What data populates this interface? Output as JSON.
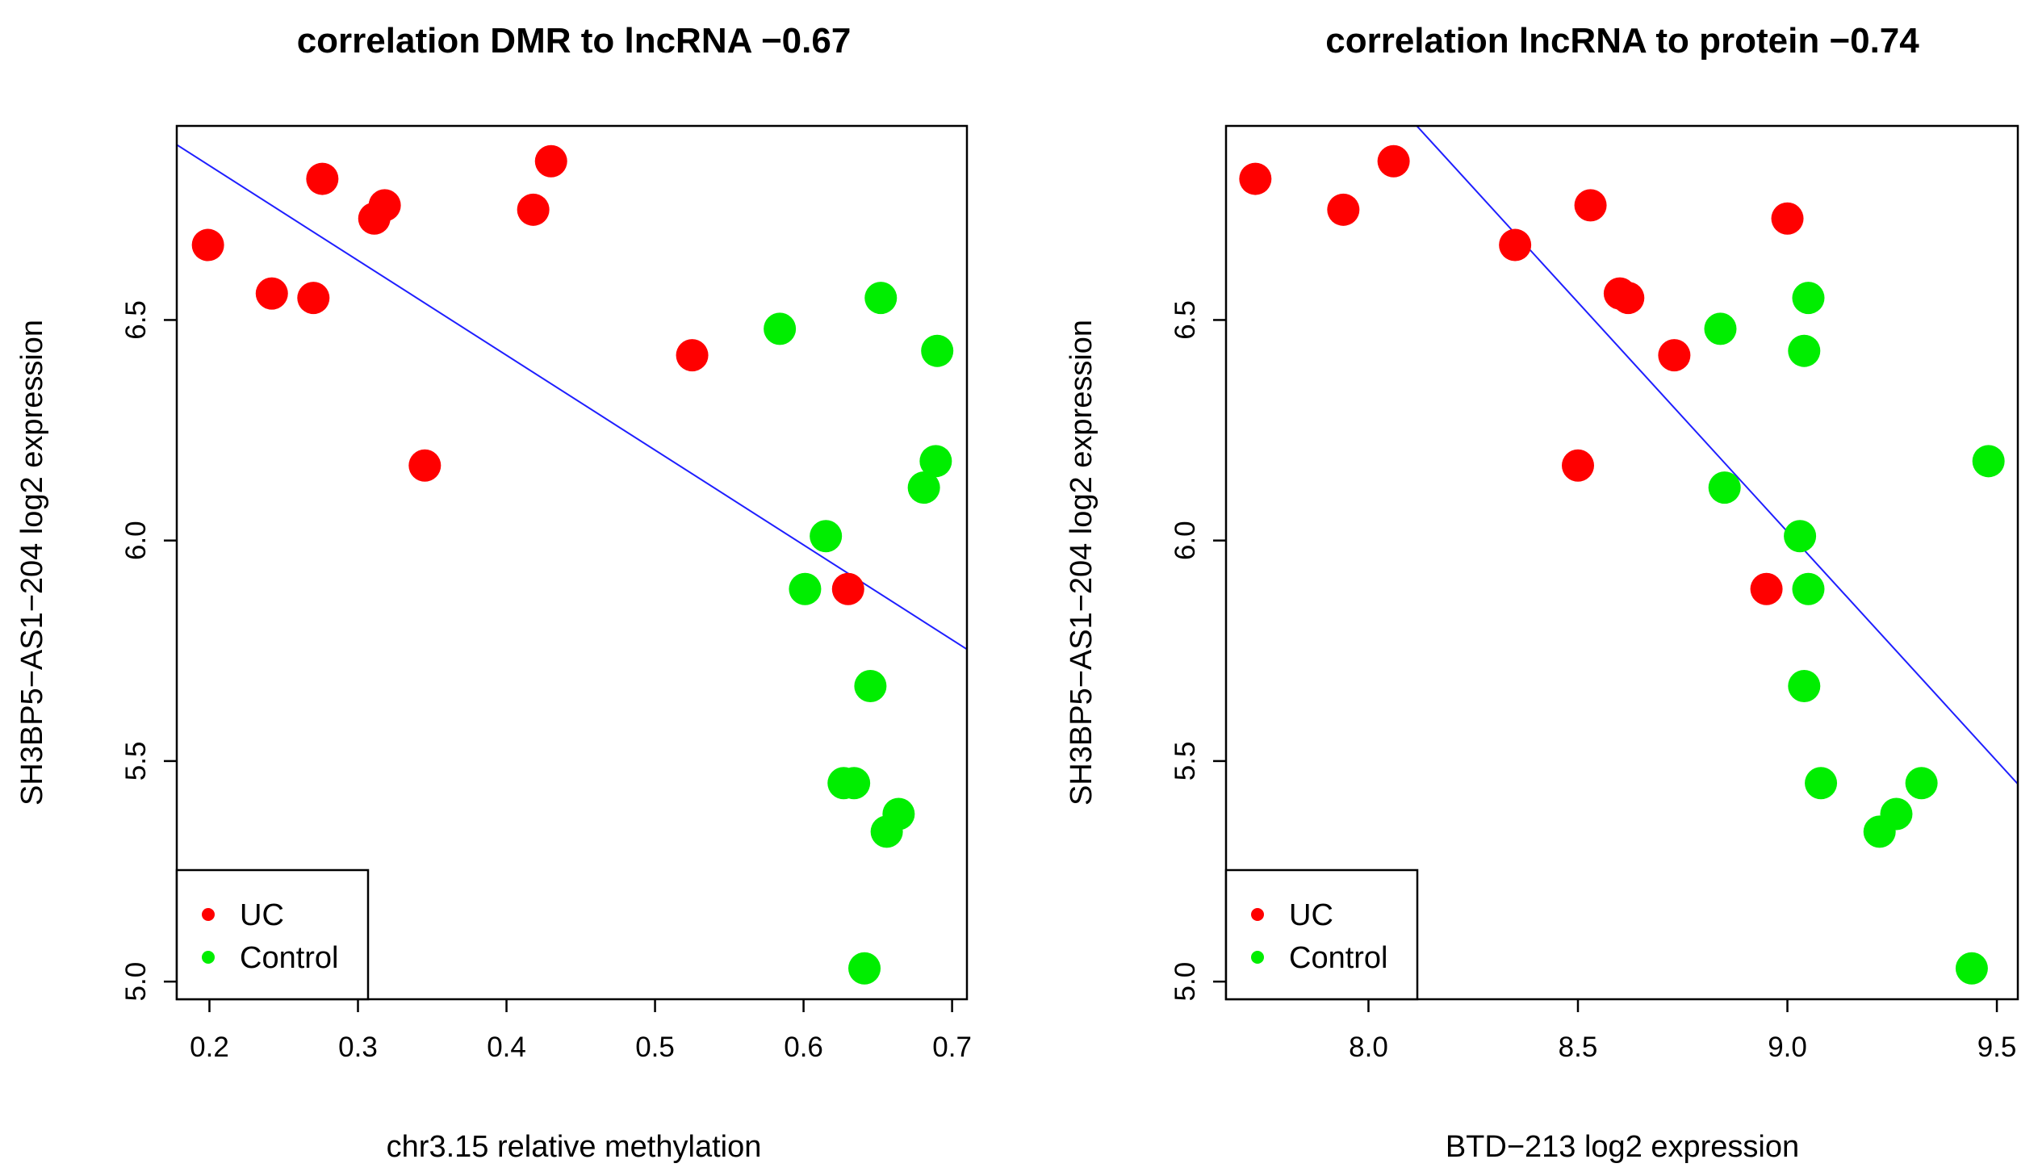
{
  "colors": {
    "uc": "#ff0000",
    "control": "#00ee00",
    "fit_line": "#1f1fff",
    "axes": "#000000"
  },
  "legend": {
    "items": [
      "UC",
      "Control"
    ],
    "position": "bottom-left"
  },
  "chart_data": [
    {
      "type": "scatter",
      "title": "correlation DMR to lncRNA −0.67",
      "xlabel": "chr3.15 relative methylation",
      "ylabel": "SH3BP5−AS1−204 log2 expression",
      "xlim": [
        0.178,
        0.71
      ],
      "ylim": [
        4.96,
        6.94
      ],
      "xticks": [
        0.2,
        0.3,
        0.4,
        0.5,
        0.6,
        0.7
      ],
      "xtick_labels": [
        "0.2",
        "0.3",
        "0.4",
        "0.5",
        "0.6",
        "0.7"
      ],
      "yticks": [
        5.0,
        5.5,
        6.0,
        6.5
      ],
      "ytick_labels": [
        "5.0",
        "5.5",
        "6.0",
        "6.5"
      ],
      "fit_line": {
        "slope": -2.15,
        "intercept": 7.28
      },
      "series": [
        {
          "name": "UC",
          "points": [
            [
              0.199,
              6.67
            ],
            [
              0.242,
              6.56
            ],
            [
              0.27,
              6.55
            ],
            [
              0.276,
              6.82
            ],
            [
              0.311,
              6.73
            ],
            [
              0.318,
              6.76
            ],
            [
              0.345,
              6.17
            ],
            [
              0.418,
              6.75
            ],
            [
              0.43,
              6.86
            ],
            [
              0.525,
              6.42
            ],
            [
              0.63,
              5.89
            ]
          ]
        },
        {
          "name": "Control",
          "points": [
            [
              0.584,
              6.48
            ],
            [
              0.601,
              5.89
            ],
            [
              0.615,
              6.01
            ],
            [
              0.627,
              5.45
            ],
            [
              0.634,
              5.45
            ],
            [
              0.641,
              5.03
            ],
            [
              0.645,
              5.67
            ],
            [
              0.652,
              6.55
            ],
            [
              0.656,
              5.34
            ],
            [
              0.664,
              5.38
            ],
            [
              0.681,
              6.12
            ],
            [
              0.689,
              6.18
            ],
            [
              0.69,
              6.43
            ]
          ]
        }
      ]
    },
    {
      "type": "scatter",
      "title": "correlation lncRNA to protein −0.74",
      "xlabel": "BTD−213 log2 expression",
      "ylabel": "SH3BP5−AS1−204 log2 expression",
      "xlim": [
        7.66,
        9.55
      ],
      "ylim": [
        4.96,
        6.94
      ],
      "xticks": [
        8.0,
        8.5,
        9.0,
        9.5
      ],
      "xtick_labels": [
        "8.0",
        "8.5",
        "9.0",
        "9.5"
      ],
      "yticks": [
        5.0,
        5.5,
        6.0,
        6.5
      ],
      "ytick_labels": [
        "5.0",
        "5.5",
        "6.0",
        "6.5"
      ],
      "fit_line": {
        "slope": -1.04,
        "intercept": 15.38
      },
      "series": [
        {
          "name": "UC",
          "points": [
            [
              7.73,
              6.82
            ],
            [
              7.94,
              6.75
            ],
            [
              8.06,
              6.86
            ],
            [
              8.35,
              6.67
            ],
            [
              8.5,
              6.17
            ],
            [
              8.53,
              6.76
            ],
            [
              8.6,
              6.56
            ],
            [
              8.62,
              6.55
            ],
            [
              8.73,
              6.42
            ],
            [
              8.95,
              5.89
            ],
            [
              9.0,
              6.73
            ]
          ]
        },
        {
          "name": "Control",
          "points": [
            [
              8.84,
              6.48
            ],
            [
              8.85,
              6.12
            ],
            [
              9.03,
              6.01
            ],
            [
              9.04,
              5.67
            ],
            [
              9.04,
              6.43
            ],
            [
              9.05,
              6.55
            ],
            [
              9.05,
              5.89
            ],
            [
              9.08,
              5.45
            ],
            [
              9.22,
              5.34
            ],
            [
              9.26,
              5.38
            ],
            [
              9.32,
              5.45
            ],
            [
              9.44,
              5.03
            ],
            [
              9.48,
              6.18
            ]
          ]
        }
      ]
    }
  ]
}
